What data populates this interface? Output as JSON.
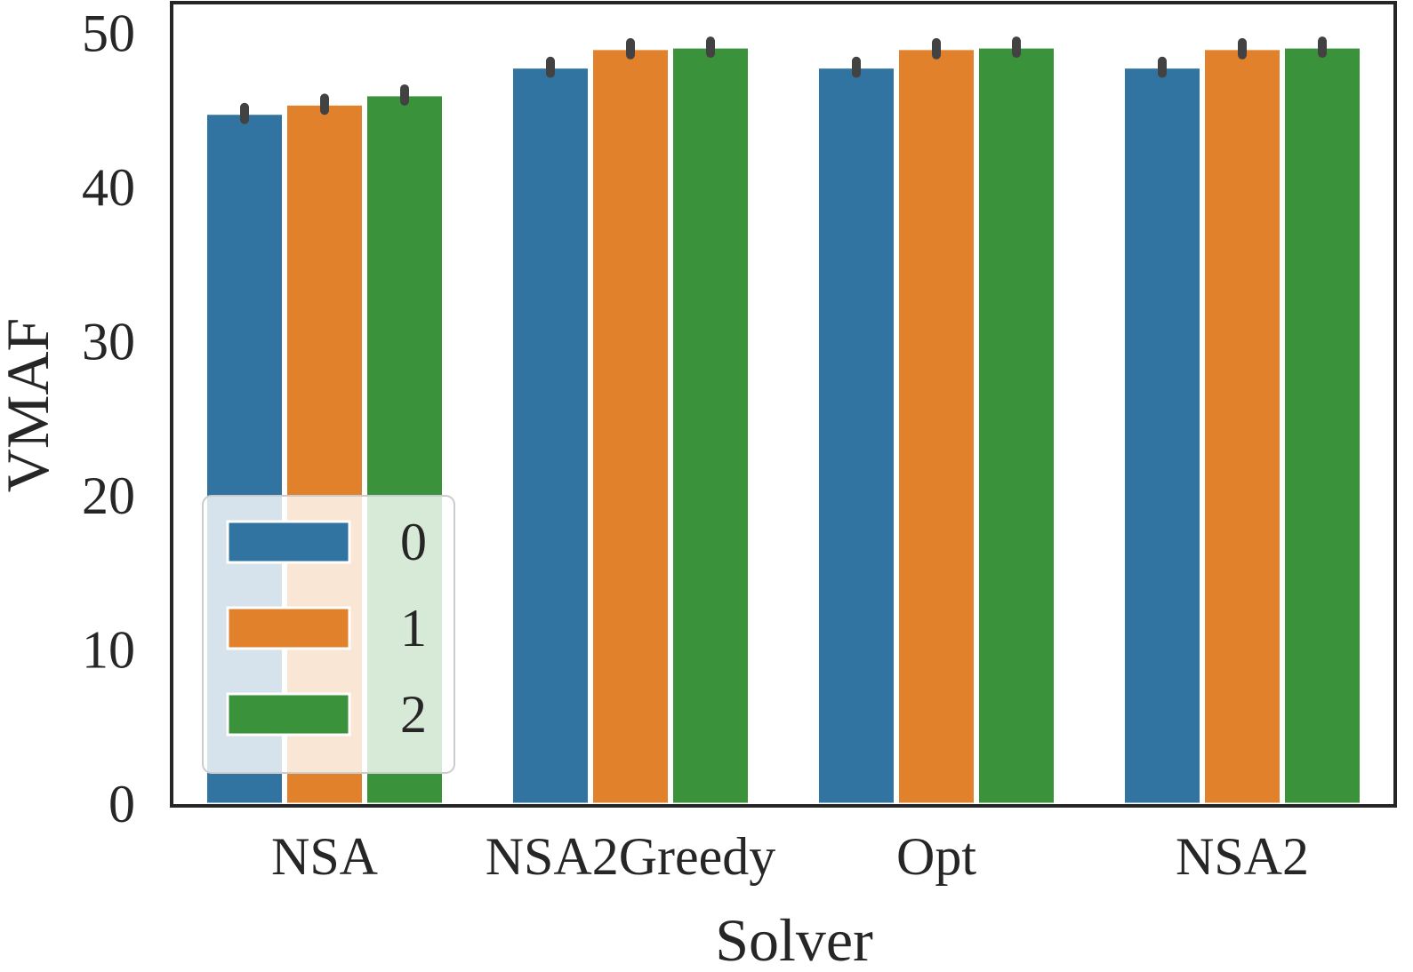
{
  "chart_data": {
    "type": "bar",
    "title": "",
    "xlabel": "Solver",
    "ylabel": "VMAF",
    "categories": [
      "NSA",
      "NSA2Greedy",
      "Opt",
      "NSA2"
    ],
    "series": [
      {
        "name": "0",
        "color": "#3274a1",
        "values": [
          44.8,
          47.8,
          47.8,
          47.8
        ],
        "err": [
          0.4,
          0.4,
          0.4,
          0.4
        ]
      },
      {
        "name": "1",
        "color": "#e1812c",
        "values": [
          45.4,
          49.0,
          49.0,
          49.0
        ],
        "err": [
          0.4,
          0.4,
          0.4,
          0.4
        ]
      },
      {
        "name": "2",
        "color": "#3a923a",
        "values": [
          46.0,
          49.1,
          49.1,
          49.1
        ],
        "err": [
          0.4,
          0.4,
          0.4,
          0.4
        ]
      }
    ],
    "yticks": [
      "0",
      "10",
      "20",
      "30",
      "40",
      "50"
    ],
    "ylim": [
      0,
      52
    ],
    "grid": false,
    "legend_position": "lower-left"
  }
}
